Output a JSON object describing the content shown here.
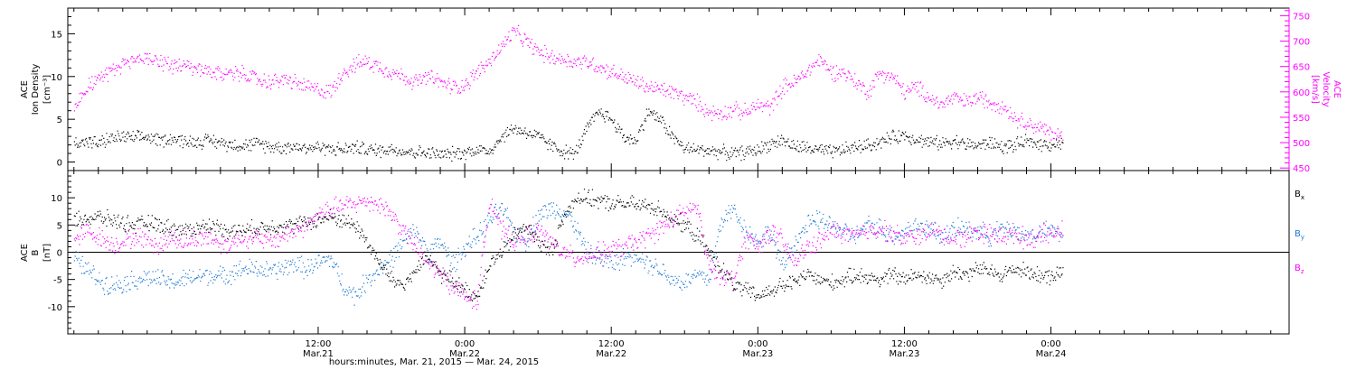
{
  "figure": {
    "xlabel": "hours:minutes, Mar. 21, 2015 — Mar. 24, 2015",
    "colors": {
      "black": "#000000",
      "magenta": "#ff00ff",
      "blue": "#1e78d2"
    }
  },
  "chart_data": [
    {
      "type": "scatter",
      "panel": "top",
      "x_unit": "hours since 2015-03-21 00:00 UT",
      "xlim": [
        -8.5,
        91.5
      ],
      "x_ticks": [
        {
          "x": 12,
          "label": "12:00",
          "sublabel": "Mar.21"
        },
        {
          "x": 24,
          "label": "0:00",
          "sublabel": "Mar.22"
        },
        {
          "x": 36,
          "label": "12:00",
          "sublabel": "Mar.22"
        },
        {
          "x": 48,
          "label": "0:00",
          "sublabel": "Mar.23"
        },
        {
          "x": 60,
          "label": "12:00",
          "sublabel": "Mar.23"
        },
        {
          "x": 72,
          "label": "0:00",
          "sublabel": "Mar.24"
        }
      ],
      "ylabel_left": [
        "ACE",
        "Ion Density",
        "[cm⁻³]"
      ],
      "ylim_left": [
        -1,
        18
      ],
      "yticks_left": [
        0,
        5,
        10,
        15
      ],
      "ylabel_right": [
        "ACE",
        "Velocity",
        "[km/s]"
      ],
      "ylim_right": [
        445,
        765
      ],
      "yticks_right": [
        450,
        500,
        550,
        600,
        650,
        700,
        750
      ],
      "series": [
        {
          "axis": "left",
          "color": "#000000",
          "x": [
            -8,
            -7,
            -6,
            -5,
            -4,
            -3,
            -2,
            -1,
            0,
            1,
            2,
            3,
            4,
            5,
            6,
            7,
            8,
            9,
            10,
            11,
            12,
            13,
            14,
            15,
            16,
            17,
            18,
            19,
            20,
            21,
            22,
            23,
            24,
            25,
            26,
            27,
            28,
            29,
            30,
            31,
            32,
            33,
            34,
            35,
            36,
            37,
            38,
            39,
            40,
            41,
            42,
            43,
            44,
            45,
            46,
            47,
            48,
            49,
            50,
            51,
            52,
            53,
            54,
            55,
            56,
            57,
            58,
            59,
            60,
            61,
            62,
            63,
            64,
            65,
            66,
            67,
            68,
            69,
            70,
            71,
            72,
            73
          ],
          "values": [
            2.3,
            2.5,
            2.2,
            2.8,
            3,
            2.8,
            3,
            2.6,
            2.8,
            2.5,
            2.4,
            2.6,
            2.3,
            2.1,
            2,
            2.2,
            1.9,
            1.8,
            1.9,
            1.7,
            1.8,
            1.6,
            1.5,
            1.8,
            1.5,
            1.4,
            1.6,
            1.3,
            1.2,
            1.1,
            0.9,
            1,
            1.2,
            1.5,
            1.3,
            3,
            4,
            3.5,
            3,
            2,
            1.3,
            1,
            4,
            6,
            5,
            3,
            2.5,
            6,
            5,
            3,
            1.6,
            1.5,
            1.4,
            1.2,
            1,
            1.2,
            1.5,
            2.2,
            2.6,
            1.8,
            1.7,
            1.4,
            1.2,
            1.5,
            1.8,
            2,
            2.4,
            2.9,
            3.2,
            2.7,
            2.4,
            2.2,
            2.6,
            2.1,
            2,
            2.3,
            1.8,
            2,
            2.4,
            2.2,
            2.1,
            2.3
          ]
        },
        {
          "axis": "right",
          "color": "#ff00ff",
          "x": [
            -8,
            -7,
            -6,
            -5,
            -4,
            -3,
            -2,
            -1,
            0,
            1,
            2,
            3,
            4,
            5,
            6,
            7,
            8,
            9,
            10,
            11,
            12,
            13,
            14,
            15,
            16,
            17,
            18,
            19,
            20,
            21,
            22,
            23,
            24,
            25,
            26,
            27,
            28,
            29,
            30,
            31,
            32,
            33,
            34,
            35,
            36,
            37,
            38,
            39,
            40,
            41,
            42,
            43,
            44,
            45,
            46,
            47,
            48,
            49,
            50,
            51,
            52,
            53,
            54,
            55,
            56,
            57,
            58,
            59,
            60,
            61,
            62,
            63,
            64,
            65,
            66,
            67,
            68,
            69,
            70,
            71,
            72,
            73
          ],
          "values": [
            575,
            610,
            630,
            640,
            655,
            665,
            670,
            660,
            655,
            650,
            645,
            640,
            635,
            640,
            635,
            625,
            620,
            625,
            620,
            610,
            605,
            600,
            640,
            655,
            660,
            650,
            640,
            630,
            620,
            630,
            620,
            610,
            615,
            640,
            660,
            690,
            720,
            700,
            680,
            670,
            665,
            660,
            660,
            650,
            640,
            630,
            620,
            610,
            605,
            600,
            590,
            580,
            560,
            560,
            565,
            560,
            575,
            570,
            610,
            620,
            640,
            665,
            640,
            640,
            620,
            600,
            640,
            630,
            600,
            610,
            590,
            575,
            590,
            580,
            590,
            580,
            575,
            550,
            540,
            530,
            520,
            510
          ]
        }
      ]
    },
    {
      "type": "scatter",
      "panel": "bottom",
      "x_unit": "hours since 2015-03-21 00:00 UT",
      "xlim": [
        -8.5,
        91.5
      ],
      "ylabel_left": [
        "ACE",
        "B",
        "[nT]"
      ],
      "ylim_left": [
        -15,
        15
      ],
      "yticks_left": [
        -10,
        -5,
        0,
        5,
        10
      ],
      "zero_line": true,
      "legend_position": "right",
      "series": [
        {
          "name": "Bx",
          "color": "#000000",
          "x": [
            -8,
            -7,
            -6,
            -5,
            -4,
            -3,
            -2,
            -1,
            0,
            1,
            2,
            3,
            4,
            5,
            6,
            7,
            8,
            9,
            10,
            11,
            12,
            13,
            14,
            15,
            16,
            17,
            18,
            19,
            20,
            21,
            22,
            23,
            24,
            25,
            26,
            27,
            28,
            29,
            30,
            31,
            32,
            33,
            34,
            35,
            36,
            37,
            38,
            39,
            40,
            41,
            42,
            43,
            44,
            45,
            46,
            47,
            48,
            49,
            50,
            51,
            52,
            53,
            54,
            55,
            56,
            57,
            58,
            59,
            60,
            61,
            62,
            63,
            64,
            65,
            66,
            67,
            68,
            69,
            70,
            71,
            72,
            73
          ],
          "values": [
            6,
            6.3,
            6.5,
            6,
            5.5,
            5,
            5.5,
            5,
            4.5,
            4,
            4.5,
            5,
            4.5,
            4,
            4.2,
            4.5,
            4.8,
            5,
            5,
            5.5,
            6,
            6.5,
            6,
            5,
            2,
            -2,
            -5,
            -6,
            -3,
            -1,
            -4,
            -5,
            -7,
            -8,
            -2,
            0,
            3,
            5,
            2,
            0,
            6,
            10,
            10,
            9.5,
            9,
            9,
            8.8,
            8.5,
            8,
            6,
            5,
            3,
            0,
            -3,
            -6,
            -7,
            -8,
            -7,
            -6,
            -5.5,
            -4,
            -5,
            -5.5,
            -5,
            -4,
            -4.5,
            -5,
            -4,
            -5,
            -4,
            -4.5,
            -5,
            -3.5,
            -4,
            -3,
            -3.5,
            -4,
            -3,
            -3.5,
            -4,
            -4.5,
            -3
          ]
        },
        {
          "name": "By",
          "color": "#1e78d2",
          "x": [
            -8,
            -7,
            -6,
            -5,
            -4,
            -3,
            -2,
            -1,
            0,
            1,
            2,
            3,
            4,
            5,
            6,
            7,
            8,
            9,
            10,
            11,
            12,
            13,
            14,
            15,
            16,
            17,
            18,
            19,
            20,
            21,
            22,
            23,
            24,
            25,
            26,
            27,
            28,
            29,
            30,
            31,
            32,
            33,
            34,
            35,
            36,
            37,
            38,
            39,
            40,
            41,
            42,
            43,
            44,
            45,
            46,
            47,
            48,
            49,
            50,
            51,
            52,
            53,
            54,
            55,
            56,
            57,
            58,
            59,
            60,
            61,
            62,
            63,
            64,
            65,
            66,
            67,
            68,
            69,
            70,
            71,
            72,
            73
          ],
          "values": [
            -1,
            -3,
            -5,
            -6,
            -5.5,
            -5,
            -4.5,
            -5,
            -5.5,
            -5,
            -4.5,
            -4,
            -4.5,
            -3.5,
            -3,
            -3,
            -3.5,
            -3,
            -2,
            -3,
            -2,
            -1,
            -6,
            -8,
            -5,
            -3,
            -1,
            2,
            4,
            0,
            2,
            -2,
            1,
            3,
            6,
            8,
            4,
            2,
            7,
            8,
            8,
            5,
            0,
            -1,
            -2,
            -1,
            0,
            -2,
            -3,
            -5,
            -5.5,
            -4,
            -5,
            6,
            8,
            4,
            2,
            4,
            -3,
            2,
            5,
            6,
            5,
            4,
            3,
            5,
            4.5,
            3,
            4,
            5,
            4.5,
            3,
            4,
            4.5,
            4,
            3,
            4.5,
            4,
            3,
            3.5,
            4,
            3.5
          ]
        },
        {
          "name": "Bz",
          "color": "#ff00ff",
          "x": [
            -8,
            -7,
            -6,
            -5,
            -4,
            -3,
            -2,
            -1,
            0,
            1,
            2,
            3,
            4,
            5,
            6,
            7,
            8,
            9,
            10,
            11,
            12,
            13,
            14,
            15,
            16,
            17,
            18,
            19,
            20,
            21,
            22,
            23,
            24,
            25,
            26,
            27,
            28,
            29,
            30,
            31,
            32,
            33,
            34,
            35,
            36,
            37,
            38,
            39,
            40,
            41,
            42,
            43,
            44,
            45,
            46,
            47,
            48,
            49,
            50,
            51,
            52,
            53,
            54,
            55,
            56,
            57,
            58,
            59,
            60,
            61,
            62,
            63,
            64,
            65,
            66,
            67,
            68,
            69,
            70,
            71,
            72,
            73
          ],
          "values": [
            2,
            4,
            3,
            1.5,
            2,
            3,
            2.5,
            1,
            3,
            2,
            2.5,
            3,
            1.5,
            2,
            3,
            2.5,
            2,
            3,
            4,
            5,
            7,
            8,
            8.5,
            9,
            9.5,
            9,
            7,
            4,
            1,
            -2,
            -4,
            -6,
            -8,
            -9,
            10,
            4,
            2,
            3,
            4,
            2,
            0,
            -1,
            -0.5,
            0,
            0.5,
            1,
            2,
            3,
            4.5,
            6,
            7.5,
            8.5,
            -3,
            -4,
            -5,
            3,
            1,
            4,
            2,
            -2,
            1,
            2,
            4,
            3.5,
            3,
            4,
            4.5,
            3.5,
            2.5,
            3,
            4,
            3.5,
            2.5,
            3,
            4,
            3.5,
            3,
            3.5,
            2.5,
            3,
            3.5,
            4
          ]
        }
      ],
      "legend": [
        {
          "name": "Bx",
          "label": "B",
          "sub": "x",
          "color": "#000000"
        },
        {
          "name": "By",
          "label": "B",
          "sub": "y",
          "color": "#1e78d2"
        },
        {
          "name": "Bz",
          "label": "B",
          "sub": "z",
          "color": "#ff00ff"
        }
      ]
    }
  ]
}
